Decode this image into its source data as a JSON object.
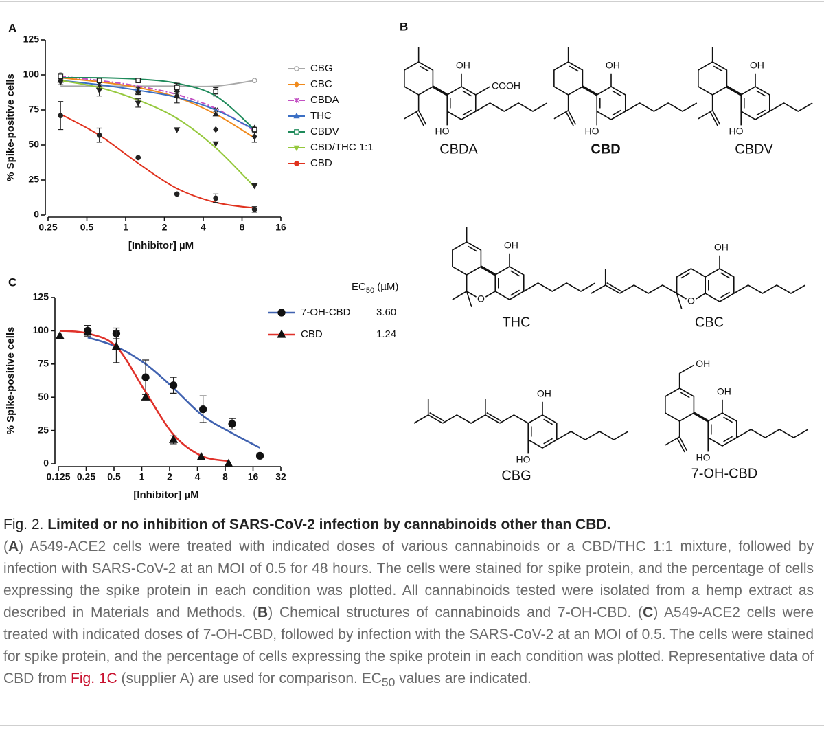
{
  "panel_a": {
    "type": "line",
    "panel": "A",
    "y_label": "% Spike-positive cells",
    "x_label": "[Inhibitor] µM",
    "xscale": "log",
    "xlim": [
      0.25,
      16
    ],
    "xticks": [
      0.25,
      0.5,
      1,
      2,
      4,
      8,
      16
    ],
    "ylim": [
      0,
      125
    ],
    "yticks": [
      0,
      25,
      50,
      75,
      100,
      125
    ],
    "legend": "right",
    "point_color": "#222222",
    "series": [
      {
        "name": "CBG",
        "color": "#a8a8a8",
        "marker": "circle",
        "hollow": true,
        "point_color": "#9e9e9e",
        "x": [
          0.3125,
          0.625,
          1.25,
          2.5,
          5,
          10
        ],
        "values": [
          100,
          96,
          96,
          92,
          89,
          96
        ],
        "fit": [
          92,
          92,
          92,
          92,
          92,
          96
        ]
      },
      {
        "name": "CBC",
        "color": "#f08a1c",
        "marker": "diamond",
        "x": [
          0.3125,
          0.625,
          1.25,
          2.5,
          5,
          10
        ],
        "values": [
          98,
          95,
          88,
          85,
          61,
          56
        ],
        "errors": [
          2,
          null,
          null,
          5,
          null,
          4
        ],
        "fit": [
          98,
          95,
          91,
          84,
          72,
          55
        ]
      },
      {
        "name": "CBDA",
        "color": "#c24fc2",
        "marker": "cross",
        "linestyle": "dash-dot",
        "x": [
          0.3125,
          0.625,
          1.25,
          2.5,
          5,
          10
        ],
        "values": [
          99,
          96,
          90,
          88,
          75,
          60
        ],
        "fit": [
          99,
          96,
          92,
          86,
          76,
          60
        ]
      },
      {
        "name": "THC",
        "color": "#3b6fc4",
        "marker": "triangle-up",
        "x": [
          0.3125,
          0.625,
          1.25,
          2.5,
          5,
          10
        ],
        "values": [
          96,
          92,
          88,
          85,
          72,
          62
        ],
        "errors": [
          3,
          null,
          2,
          null,
          null,
          null
        ],
        "fit": [
          96,
          93,
          89,
          84,
          75,
          61
        ]
      },
      {
        "name": "CBDV",
        "color": "#1e8a5a",
        "marker": "square",
        "hollow": true,
        "x": [
          0.3125,
          0.625,
          1.25,
          2.5,
          5,
          10
        ],
        "values": [
          99,
          96,
          96,
          91,
          88,
          61
        ],
        "errors": [
          2,
          null,
          null,
          3,
          3,
          null
        ],
        "fit": [
          98,
          98,
          97,
          94,
          85,
          61
        ]
      },
      {
        "name": "CBD/THC 1:1",
        "color": "#95c83c",
        "marker": "triangle-down",
        "x": [
          0.3125,
          0.625,
          1.25,
          2.5,
          5,
          10
        ],
        "values": [
          95,
          89,
          80,
          61,
          51,
          21
        ],
        "errors": [
          null,
          4,
          3,
          null,
          null,
          null
        ],
        "fit": [
          96,
          91,
          82,
          69,
          48,
          20
        ]
      },
      {
        "name": "CBD",
        "color": "#e0321e",
        "marker": "circle",
        "x": [
          0.3125,
          0.625,
          1.25,
          2.5,
          5,
          10
        ],
        "values": [
          71,
          57,
          41,
          15,
          12,
          4
        ],
        "errors": [
          10,
          5,
          null,
          null,
          3,
          2
        ],
        "fit": [
          72,
          57,
          37,
          19,
          9,
          5
        ]
      }
    ]
  },
  "panel_c": {
    "type": "line",
    "panel": "C",
    "y_label": "% Spike-positive cells",
    "x_label": "[Inhibitor] µM",
    "xscale": "log",
    "xlim": [
      0.125,
      32
    ],
    "xticks": [
      0.125,
      0.25,
      0.5,
      1,
      2,
      4,
      8,
      16,
      32
    ],
    "ylim": [
      0,
      125
    ],
    "yticks": [
      0,
      25,
      50,
      75,
      100,
      125
    ],
    "legend": "right",
    "point_color": "#111111",
    "legend_marker_color": "#111111",
    "ec50_header": {
      "main": "EC",
      "sub": "50",
      "unit": " (µM)"
    },
    "series": [
      {
        "name": "7-OH-CBD",
        "color": "#4062b0",
        "marker": "circle",
        "ec50": {
          "value": 3.6,
          "label": "3.60"
        },
        "x": [
          0.26,
          0.53,
          1.1,
          2.2,
          4.6,
          9.5,
          19
        ],
        "values": [
          100,
          98,
          65,
          59,
          41,
          30,
          6
        ],
        "errors": [
          4,
          4,
          13,
          6,
          10,
          4,
          null
        ],
        "fit": [
          95,
          88,
          75,
          57,
          36,
          23,
          12
        ]
      },
      {
        "name": "CBD",
        "color": "#e0312a",
        "marker": "triangle-up",
        "ec50": 1.24,
        "x": [
          0.13,
          0.26,
          0.53,
          1.1,
          2.2,
          4.4,
          8.7
        ],
        "values": [
          96,
          99,
          88,
          50,
          18,
          5,
          0
        ],
        "errors": [
          null,
          null,
          12,
          null,
          3,
          null,
          null
        ],
        "fit": [
          100,
          98,
          88,
          54,
          22,
          6,
          2
        ]
      }
    ]
  },
  "structures_panel": {
    "label": "B",
    "molecules": [
      {
        "name": "CBDA",
        "atoms": [
          "OH",
          "COOH",
          "HO"
        ]
      },
      {
        "name": "CBD",
        "atoms": [
          "OH",
          "HO"
        ]
      },
      {
        "name": "CBDV",
        "atoms": [
          "OH",
          "HO"
        ]
      },
      {
        "name": "THC",
        "atoms": [
          "OH",
          "O"
        ]
      },
      {
        "name": "CBC",
        "atoms": [
          "OH",
          "O"
        ]
      },
      {
        "name": "CBG",
        "atoms": [
          "OH",
          "HO"
        ]
      },
      {
        "name": "7-OH-CBD",
        "atoms": [
          "OH",
          "OH",
          "HO"
        ]
      }
    ]
  },
  "caption": {
    "label": "Fig. 2.",
    "title": "Limited or no inhibition of SARS-CoV-2 infection by cannabinoids other than CBD.",
    "body": [
      "(",
      "A",
      ") A549-ACE2 cells were treated with indicated doses of various cannabinoids or a CBD/THC 1:1 mixture, followed by infection with SARS-CoV-2 at an MOI of 0.5 for 48 hours. The cells were stained for spike protein, and the percentage of cells expressing the spike protein in each condition was plotted. All cannabinoids tested were isolated from a hemp extract as described in Materials and Methods. (",
      "B",
      ") Chemical structures of cannabinoids and 7-OH-CBD. (",
      "C",
      ") A549-ACE2 cells were treated with indicated doses of 7-OH-CBD, followed by infection with the SARS-CoV-2 at an MOI of 0.5. The cells were stained for spike protein, and the percentage of cells expressing the spike protein in each condition was plotted. Representative data of CBD from ",
      "Fig. 1C",
      " (supplier A) are used for comparison. EC",
      "50",
      " values are indicated."
    ]
  }
}
